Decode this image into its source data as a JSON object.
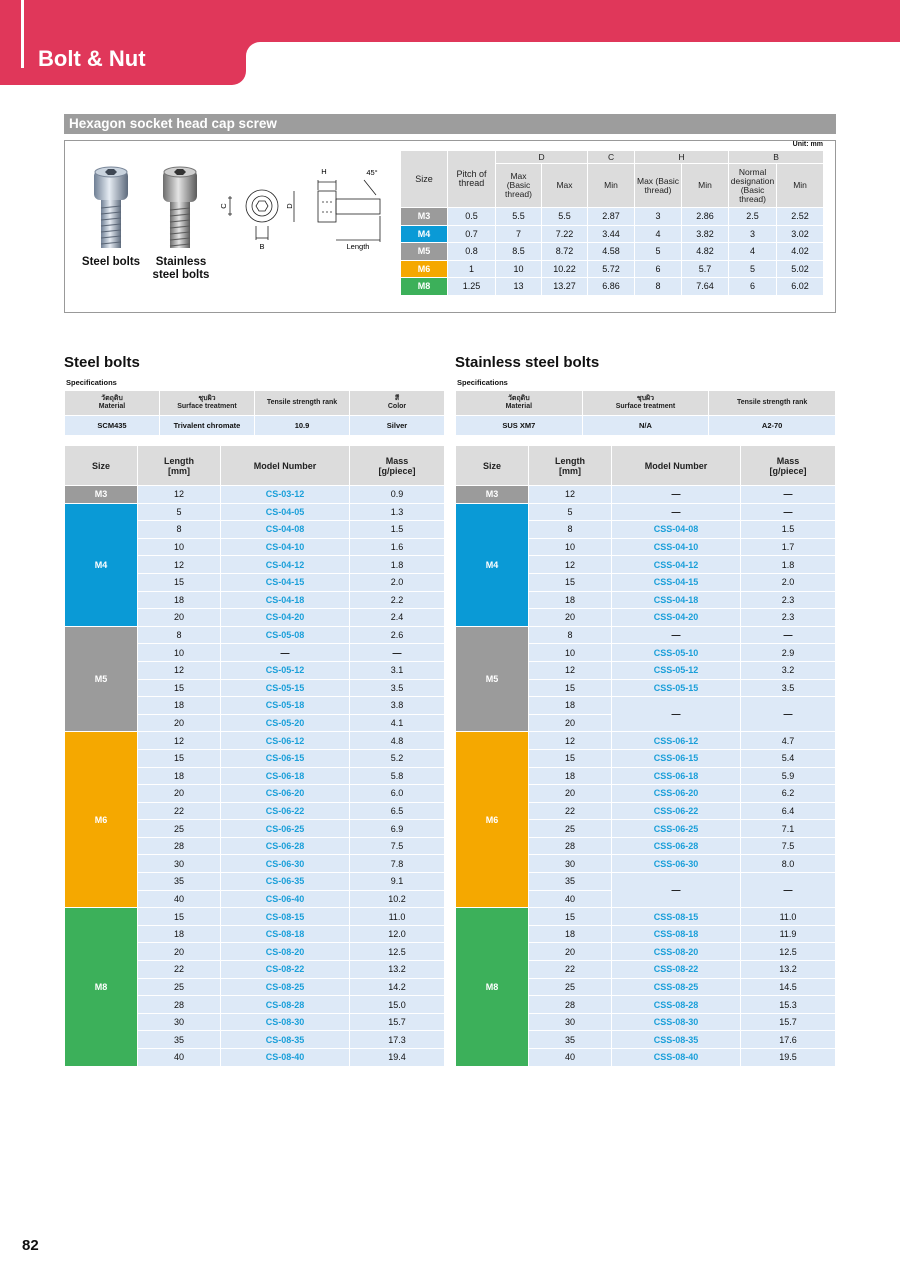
{
  "header": {
    "section": "Bolt & Nut"
  },
  "product": {
    "title": "Hexagon socket head cap screw",
    "unit": "Unit: mm",
    "images": [
      "Steel bolts",
      "Stainless\nsteel bolts"
    ],
    "diagram_labels": {
      "h": "H",
      "angle": "45°",
      "c": "C",
      "d": "D",
      "b": "B",
      "length": "Length"
    },
    "dimensions": {
      "header_top": [
        "Size",
        "Pitch of\nthread",
        "D",
        "C",
        "H",
        "B"
      ],
      "header_sub": [
        "Max\n(Basic\nthread)",
        "Max",
        "Min",
        "Max (Basic\nthread)",
        "Min",
        "Normal\ndesignation\n(Basic\nthread)",
        "Min"
      ],
      "rows": [
        {
          "size": "M3",
          "color": "#9b9b9b",
          "values": [
            "0.5",
            "5.5",
            "5.5",
            "2.87",
            "3",
            "2.86",
            "2.5",
            "2.52"
          ]
        },
        {
          "size": "M4",
          "color": "#0a9ad6",
          "values": [
            "0.7",
            "7",
            "7.22",
            "3.44",
            "4",
            "3.82",
            "3",
            "3.02"
          ]
        },
        {
          "size": "M5",
          "color": "#9b9b9b",
          "values": [
            "0.8",
            "8.5",
            "8.72",
            "4.58",
            "5",
            "4.82",
            "4",
            "4.02"
          ]
        },
        {
          "size": "M6",
          "color": "#f5a800",
          "values": [
            "1",
            "10",
            "10.22",
            "5.72",
            "6",
            "5.7",
            "5",
            "5.02"
          ]
        },
        {
          "size": "M8",
          "color": "#3cb05a",
          "values": [
            "1.25",
            "13",
            "13.27",
            "6.86",
            "8",
            "7.64",
            "6",
            "6.02"
          ]
        }
      ]
    }
  },
  "steel": {
    "title": "Steel bolts",
    "spec_label": "Specifications",
    "spec_header": [
      "วัตถุดิบ\nMaterial",
      "ชุบผิว\nSurface treatment",
      "Tensile strength rank",
      "สี\nColor"
    ],
    "spec_values": [
      "SCM435",
      "Trivalent chromate",
      "10.9",
      "Silver"
    ],
    "header": [
      "Size",
      "Length\n[mm]",
      "Model Number",
      "Mass\n[g/piece]"
    ],
    "groups": [
      {
        "size": "M3",
        "color": "#9b9b9b",
        "rows": [
          [
            "12",
            "CS-03-12",
            "0.9"
          ]
        ]
      },
      {
        "size": "M4",
        "color": "#0a9ad6",
        "rows": [
          [
            "5",
            "CS-04-05",
            "1.3"
          ],
          [
            "8",
            "CS-04-08",
            "1.5"
          ],
          [
            "10",
            "CS-04-10",
            "1.6"
          ],
          [
            "12",
            "CS-04-12",
            "1.8"
          ],
          [
            "15",
            "CS-04-15",
            "2.0"
          ],
          [
            "18",
            "CS-04-18",
            "2.2"
          ],
          [
            "20",
            "CS-04-20",
            "2.4"
          ]
        ]
      },
      {
        "size": "M5",
        "color": "#9b9b9b",
        "rows": [
          [
            "8",
            "CS-05-08",
            "2.6"
          ],
          [
            "10",
            "—",
            "—"
          ],
          [
            "12",
            "CS-05-12",
            "3.1"
          ],
          [
            "15",
            "CS-05-15",
            "3.5"
          ],
          [
            "18",
            "CS-05-18",
            "3.8"
          ],
          [
            "20",
            "CS-05-20",
            "4.1"
          ]
        ]
      },
      {
        "size": "M6",
        "color": "#f5a800",
        "rows": [
          [
            "12",
            "CS-06-12",
            "4.8"
          ],
          [
            "15",
            "CS-06-15",
            "5.2"
          ],
          [
            "18",
            "CS-06-18",
            "5.8"
          ],
          [
            "20",
            "CS-06-20",
            "6.0"
          ],
          [
            "22",
            "CS-06-22",
            "6.5"
          ],
          [
            "25",
            "CS-06-25",
            "6.9"
          ],
          [
            "28",
            "CS-06-28",
            "7.5"
          ],
          [
            "30",
            "CS-06-30",
            "7.8"
          ],
          [
            "35",
            "CS-06-35",
            "9.1"
          ],
          [
            "40",
            "CS-06-40",
            "10.2"
          ]
        ]
      },
      {
        "size": "M8",
        "color": "#3cb05a",
        "rows": [
          [
            "15",
            "CS-08-15",
            "11.0"
          ],
          [
            "18",
            "CS-08-18",
            "12.0"
          ],
          [
            "20",
            "CS-08-20",
            "12.5"
          ],
          [
            "22",
            "CS-08-22",
            "13.2"
          ],
          [
            "25",
            "CS-08-25",
            "14.2"
          ],
          [
            "28",
            "CS-08-28",
            "15.0"
          ],
          [
            "30",
            "CS-08-30",
            "15.7"
          ],
          [
            "35",
            "CS-08-35",
            "17.3"
          ],
          [
            "40",
            "CS-08-40",
            "19.4"
          ]
        ]
      }
    ]
  },
  "stainless": {
    "title": "Stainless steel bolts",
    "spec_label": "Specifications",
    "spec_header": [
      "วัตถุดิบ\nMaterial",
      "ชุบผิว\nSurface treatment",
      "Tensile strength rank"
    ],
    "spec_values": [
      "SUS XM7",
      "N/A",
      "A2-70"
    ],
    "header": [
      "Size",
      "Length\n[mm]",
      "Model Number",
      "Mass\n[g/piece]"
    ],
    "groups": [
      {
        "size": "M3",
        "color": "#9b9b9b",
        "rows": [
          [
            "12",
            "—",
            "—"
          ]
        ]
      },
      {
        "size": "M4",
        "color": "#0a9ad6",
        "rows": [
          [
            "5",
            "—",
            "—"
          ],
          [
            "8",
            "CSS-04-08",
            "1.5"
          ],
          [
            "10",
            "CSS-04-10",
            "1.7"
          ],
          [
            "12",
            "CSS-04-12",
            "1.8"
          ],
          [
            "15",
            "CSS-04-15",
            "2.0"
          ],
          [
            "18",
            "CSS-04-18",
            "2.3"
          ],
          [
            "20",
            "CSS-04-20",
            "2.3"
          ]
        ]
      },
      {
        "size": "M5",
        "color": "#9b9b9b",
        "rows": [
          [
            "8",
            "—",
            "—"
          ],
          [
            "10",
            "CSS-05-10",
            "2.9"
          ],
          [
            "12",
            "CSS-05-12",
            "3.2"
          ],
          [
            "15",
            "CSS-05-15",
            "3.5"
          ],
          [
            "18",
            "—",
            "—"
          ],
          [
            "20"
          ]
        ]
      },
      {
        "size": "M6",
        "color": "#f5a800",
        "rows": [
          [
            "12",
            "CSS-06-12",
            "4.7"
          ],
          [
            "15",
            "CSS-06-15",
            "5.4"
          ],
          [
            "18",
            "CSS-06-18",
            "5.9"
          ],
          [
            "20",
            "CSS-06-20",
            "6.2"
          ],
          [
            "22",
            "CSS-06-22",
            "6.4"
          ],
          [
            "25",
            "CSS-06-25",
            "7.1"
          ],
          [
            "28",
            "CSS-06-28",
            "7.5"
          ],
          [
            "30",
            "CSS-06-30",
            "8.0"
          ],
          [
            "35",
            "—",
            "—"
          ],
          [
            "40"
          ]
        ]
      },
      {
        "size": "M8",
        "color": "#3cb05a",
        "rows": [
          [
            "15",
            "CSS-08-15",
            "11.0"
          ],
          [
            "18",
            "CSS-08-18",
            "11.9"
          ],
          [
            "20",
            "CSS-08-20",
            "12.5"
          ],
          [
            "22",
            "CSS-08-22",
            "13.2"
          ],
          [
            "25",
            "CSS-08-25",
            "14.5"
          ],
          [
            "28",
            "CSS-08-28",
            "15.3"
          ],
          [
            "30",
            "CSS-08-30",
            "15.7"
          ],
          [
            "35",
            "CSS-08-35",
            "17.6"
          ],
          [
            "40",
            "CSS-08-40",
            "19.5"
          ]
        ]
      }
    ]
  },
  "footer": {
    "page": "82"
  }
}
